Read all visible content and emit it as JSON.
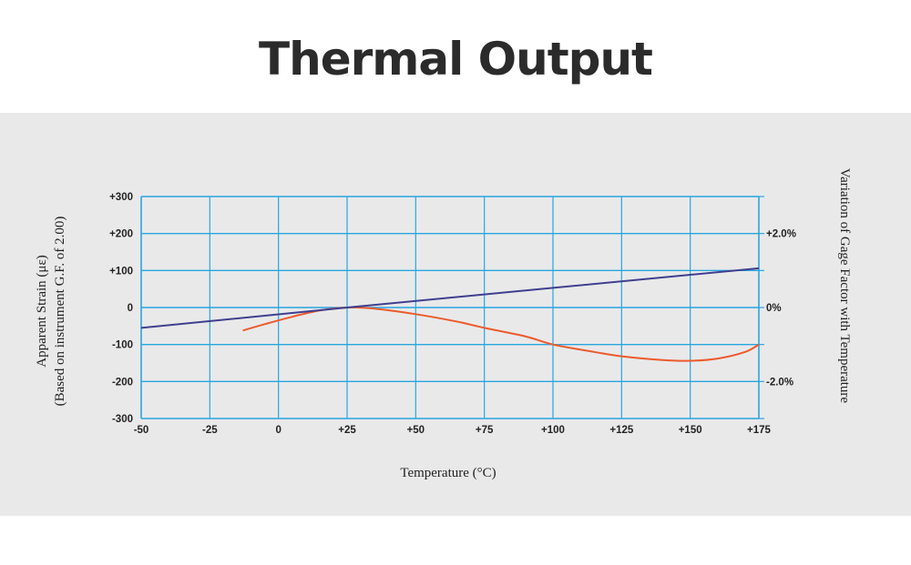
{
  "page": {
    "title": "Thermal Output"
  },
  "chart_data": {
    "type": "line",
    "xlabel": "Temperature (°C)",
    "ylabel_line1": "Apparent Strain (με)",
    "ylabel_line2": "(Based on instrument G.F. of 2.00)",
    "y2label": "Variation of Gage Factor with Temperature",
    "xlim": [
      -50,
      175
    ],
    "ylim": [
      -300,
      300
    ],
    "y2lim": [
      -3.0,
      3.0
    ],
    "x_ticks": [
      -50,
      -25,
      0,
      25,
      50,
      75,
      100,
      125,
      150,
      175
    ],
    "x_tick_labels": [
      "-50",
      "-25",
      "0",
      "+25",
      "+50",
      "+75",
      "+100",
      "+125",
      "+150",
      "+175"
    ],
    "y_ticks": [
      300,
      200,
      100,
      0,
      -100,
      -200,
      -300
    ],
    "y_tick_labels": [
      "+300",
      "+200",
      "+100",
      "0",
      "-100",
      "-200",
      "-300"
    ],
    "y2_ticks": [
      2.0,
      0,
      -2.0
    ],
    "y2_tick_labels": [
      "+2.0%",
      "0%",
      "-2.0%"
    ],
    "grid": true,
    "colors": {
      "grid": "#29a6e0",
      "thermal_output": "#ec5a2c",
      "gage_factor": "#3f3f8f"
    },
    "series": [
      {
        "axis": "left",
        "points": [
          [
            -13,
            -62
          ],
          [
            -5,
            -45
          ],
          [
            5,
            -25
          ],
          [
            15,
            -8
          ],
          [
            25,
            0
          ],
          [
            35,
            -3
          ],
          [
            50,
            -18
          ],
          [
            65,
            -38
          ],
          [
            75,
            -55
          ],
          [
            90,
            -78
          ],
          [
            100,
            -100
          ],
          [
            115,
            -120
          ],
          [
            125,
            -132
          ],
          [
            140,
            -142
          ],
          [
            150,
            -144
          ],
          [
            160,
            -138
          ],
          [
            170,
            -120
          ],
          [
            175,
            -100
          ]
        ]
      },
      {
        "axis": "right",
        "points": [
          [
            -50,
            -0.55
          ],
          [
            25,
            0
          ],
          [
            175,
            1.06
          ]
        ]
      }
    ]
  }
}
